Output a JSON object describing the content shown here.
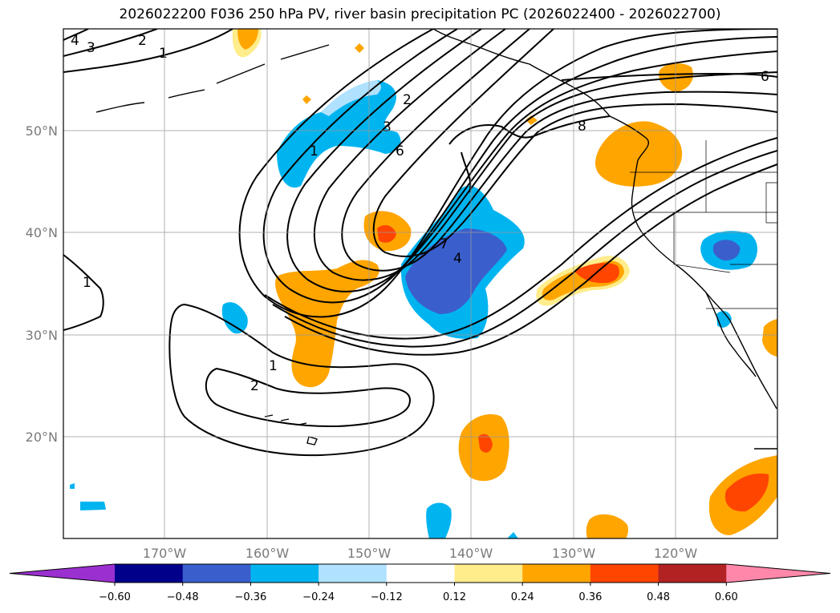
{
  "title": "2026022200 F036 250 hPa PV, river basin precipitation PC (2026022400 - 2026022700)",
  "map": {
    "latitude_labels": [
      "50°N",
      "40°N",
      "30°N",
      "20°N"
    ],
    "longitude_labels": [
      "170°W",
      "160°W",
      "150°W",
      "140°W",
      "130°W",
      "120°W"
    ],
    "pv_contour_labels": [
      "1",
      "2",
      "3",
      "4",
      "6",
      "7",
      "8"
    ]
  },
  "colorbar": {
    "tick_labels": [
      "−0.60",
      "−0.48",
      "−0.36",
      "−0.24",
      "−0.12",
      "0.12",
      "0.24",
      "0.36",
      "0.48",
      "0.60"
    ],
    "colors": [
      "#9b30d0",
      "#00008b",
      "#3a5fcd",
      "#00b4f0",
      "#b0e2ff",
      "#ffffff",
      "#ffec8b",
      "#ffa500",
      "#ff4500",
      "#b22222",
      "#ff88aa"
    ]
  }
}
